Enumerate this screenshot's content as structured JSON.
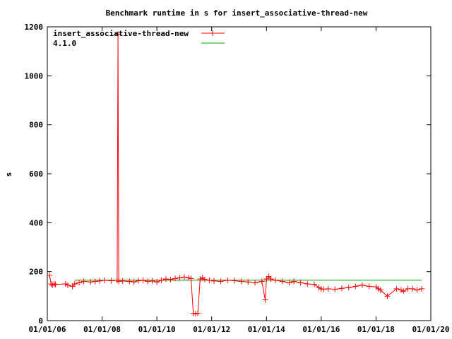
{
  "chart_data": {
    "type": "line",
    "title": "Benchmark runtime in s for insert_associative-thread-new",
    "xlabel": "",
    "ylabel": "s",
    "ylim": [
      0,
      1200
    ],
    "yticks": [
      "0",
      "200",
      "400",
      "600",
      "800",
      "1000",
      "1200"
    ],
    "xlim": [
      "2006-01-01",
      "2020-01-01"
    ],
    "xticks": [
      "01/01/06",
      "01/01/08",
      "01/01/10",
      "01/01/12",
      "01/01/14",
      "01/01/16",
      "01/01/18",
      "01/01/20"
    ],
    "grid": false,
    "legend_position": "top-left",
    "colors": {
      "series": "#ff0000",
      "baseline": "#00a000",
      "axes": "#000000"
    },
    "series": [
      {
        "name": "insert_associative-thread-new",
        "style": "linespoints",
        "x": [
          "2006-02-01",
          "2006-02-20",
          "2006-03-10",
          "2006-04-01",
          "2006-04-20",
          "2006-09-01",
          "2006-10-01",
          "2006-12-01",
          "2007-01-01",
          "2007-03-01",
          "2007-05-01",
          "2007-08-01",
          "2007-10-01",
          "2007-12-01",
          "2008-02-01",
          "2008-05-01",
          "2008-07-20",
          "2008-08-01",
          "2008-08-10",
          "2008-10-01",
          "2009-01-01",
          "2009-03-01",
          "2009-05-01",
          "2009-07-01",
          "2009-09-01",
          "2009-11-01",
          "2010-01-01",
          "2010-03-01",
          "2010-05-01",
          "2010-07-01",
          "2010-09-01",
          "2010-11-01",
          "2011-01-01",
          "2011-03-01",
          "2011-04-01",
          "2011-05-01",
          "2011-06-01",
          "2011-07-01",
          "2011-08-01",
          "2011-09-01",
          "2011-10-01",
          "2011-12-01",
          "2012-02-01",
          "2012-05-01",
          "2012-08-01",
          "2012-11-01",
          "2013-02-01",
          "2013-05-01",
          "2013-08-01",
          "2013-11-01",
          "2013-12-15",
          "2014-01-01",
          "2014-02-01",
          "2014-03-01",
          "2014-05-01",
          "2014-08-01",
          "2014-11-01",
          "2015-01-01",
          "2015-04-01",
          "2015-07-01",
          "2015-10-01",
          "2015-12-01",
          "2016-01-01",
          "2016-02-01",
          "2016-04-01",
          "2016-07-01",
          "2016-10-01",
          "2017-01-01",
          "2017-04-01",
          "2017-07-01",
          "2017-10-01",
          "2018-01-01",
          "2018-02-01",
          "2018-03-01",
          "2018-06-01",
          "2018-10-01",
          "2018-12-01",
          "2019-01-01",
          "2019-03-01",
          "2019-05-01",
          "2019-07-01",
          "2019-09-01"
        ],
        "y": [
          185,
          150,
          145,
          150,
          148,
          150,
          145,
          140,
          150,
          155,
          160,
          158,
          160,
          162,
          165,
          163,
          165,
          1170,
          160,
          162,
          160,
          158,
          163,
          165,
          160,
          162,
          158,
          165,
          170,
          168,
          172,
          175,
          178,
          175,
          172,
          30,
          28,
          30,
          170,
          175,
          168,
          165,
          162,
          160,
          165,
          163,
          160,
          158,
          155,
          160,
          85,
          170,
          180,
          170,
          165,
          160,
          155,
          160,
          155,
          150,
          148,
          135,
          130,
          128,
          130,
          128,
          132,
          135,
          140,
          145,
          140,
          138,
          130,
          125,
          100,
          130,
          125,
          120,
          130,
          130,
          125,
          130
        ]
      },
      {
        "name": "4.1.0",
        "style": "lines",
        "x": [
          "2007-01-01",
          "2019-09-01"
        ],
        "y": [
          165,
          165
        ]
      }
    ]
  }
}
